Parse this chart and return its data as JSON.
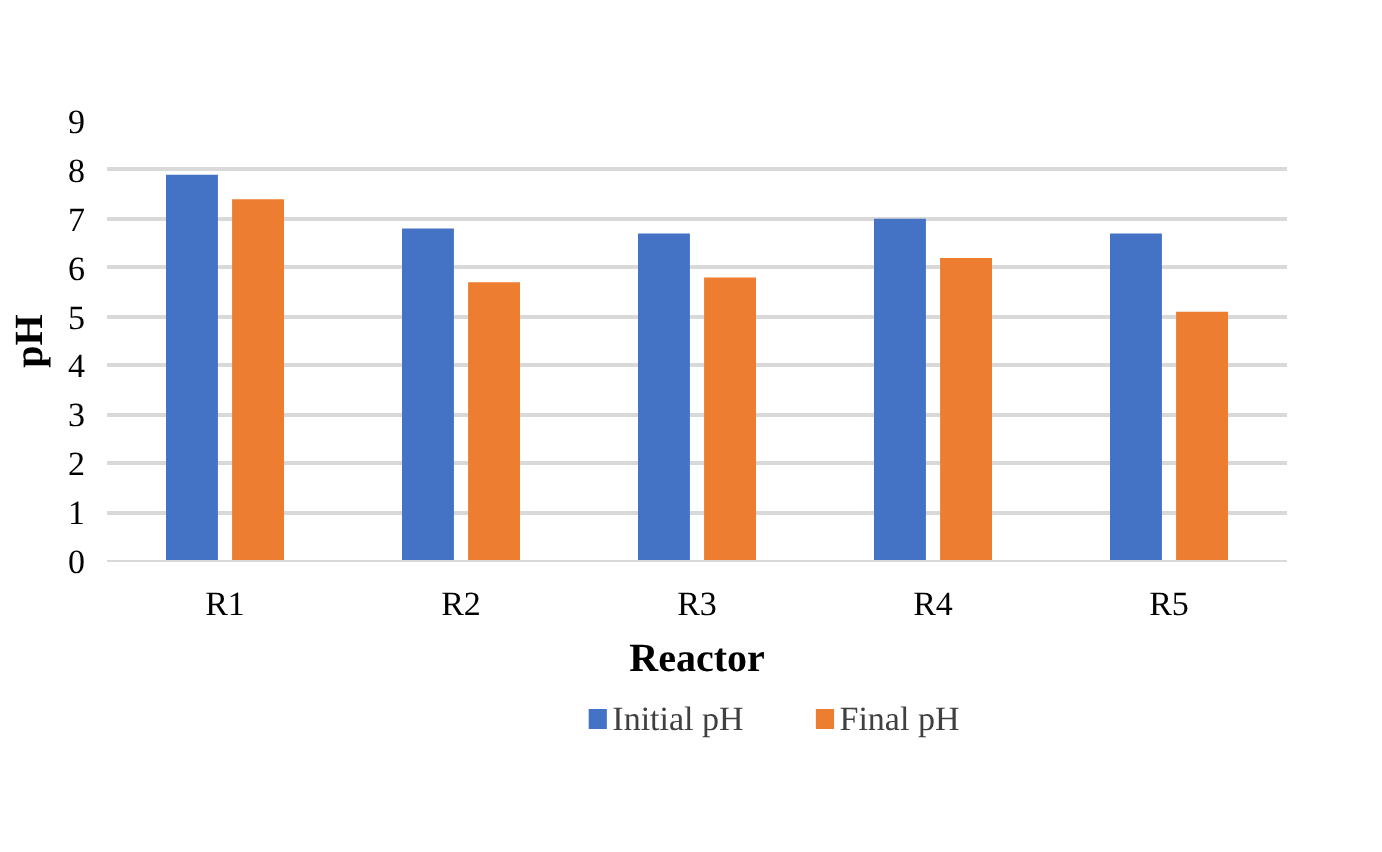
{
  "chart_data": {
    "type": "bar",
    "xlabel": "Reactor",
    "ylabel": "pH",
    "categories": [
      "R1",
      "R2",
      "R3",
      "R4",
      "R5"
    ],
    "series": [
      {
        "name": "Initial pH",
        "color": "#4472c4",
        "values": [
          7.9,
          6.8,
          6.7,
          7.0,
          6.7
        ]
      },
      {
        "name": "Final pH",
        "color": "#ed7d31",
        "values": [
          7.4,
          5.7,
          5.8,
          6.2,
          5.1
        ]
      }
    ],
    "ylim": [
      0,
      9
    ],
    "yticks": [
      0,
      1,
      2,
      3,
      4,
      5,
      6,
      7,
      8,
      9
    ],
    "grid": "y",
    "legend": "bottom"
  }
}
